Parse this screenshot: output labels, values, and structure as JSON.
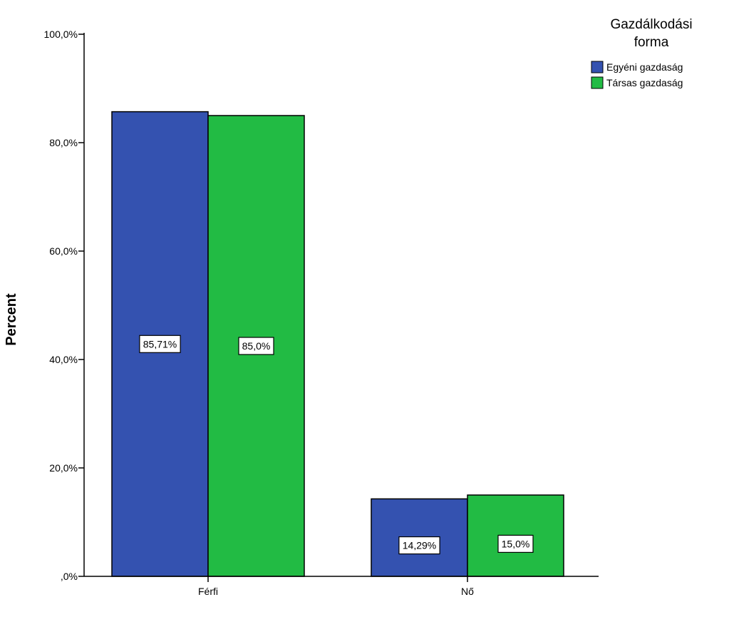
{
  "chart_data": {
    "type": "bar",
    "categories": [
      "Férfi",
      "Nő"
    ],
    "series": [
      {
        "name": "Egyéni gazdaság",
        "values": [
          85.71,
          14.29
        ],
        "labels": [
          "85,71%",
          "14,29%"
        ],
        "color": "#3452b0"
      },
      {
        "name": "Társas gazdaság",
        "values": [
          85.0,
          15.0
        ],
        "labels": [
          "85,0%",
          "15,0%"
        ],
        "color": "#22bb44"
      }
    ],
    "ylabel": "Percent",
    "xlabel": "",
    "ylim": [
      0,
      100
    ],
    "yticks": [
      0,
      20,
      40,
      60,
      80,
      100
    ],
    "ytick_labels": [
      ",0%",
      "20,0%",
      "40,0%",
      "60,0%",
      "80,0%",
      "100,0%"
    ],
    "legend": {
      "title_lines": [
        "Gazdálkodási",
        "forma"
      ],
      "position": "top-right"
    },
    "grid": false
  }
}
